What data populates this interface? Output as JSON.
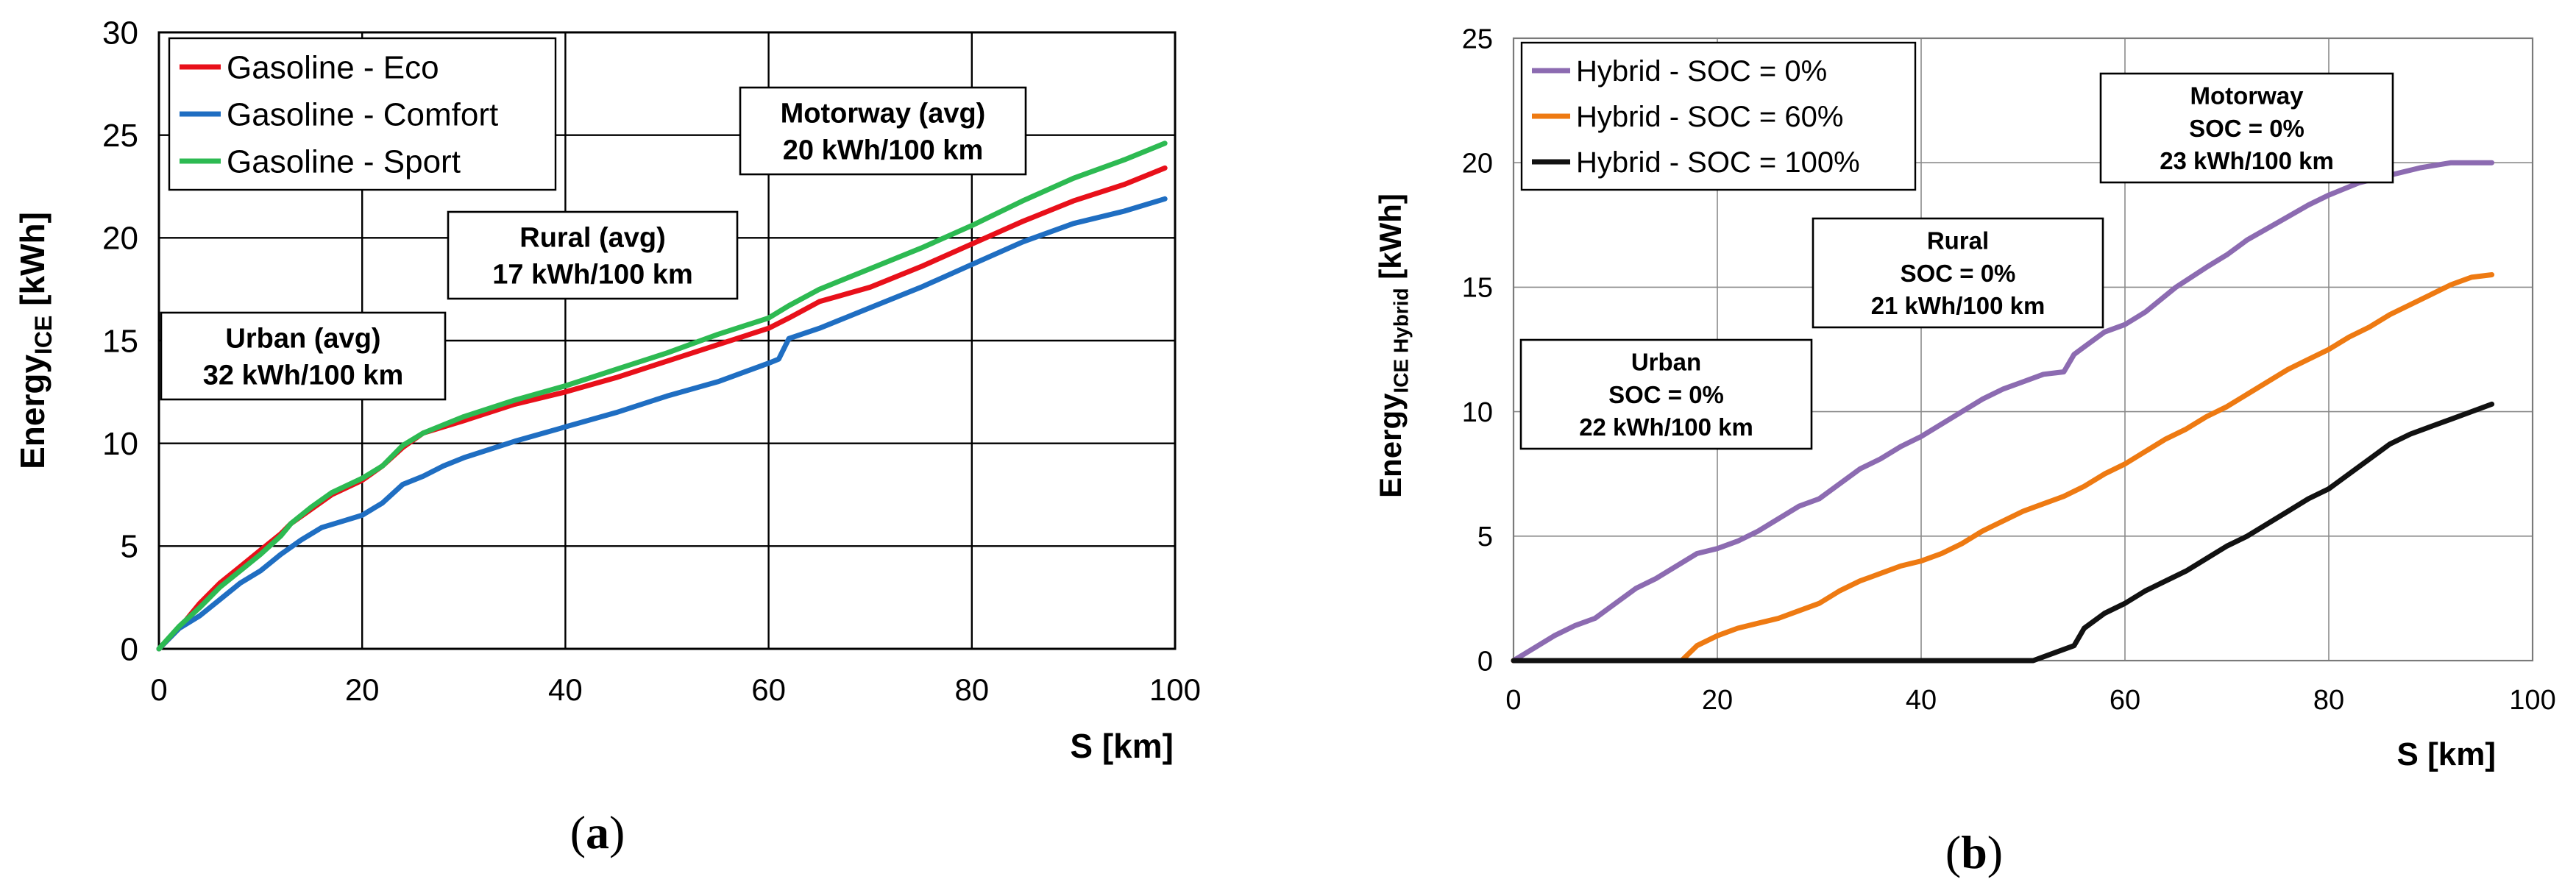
{
  "chart_data": [
    {
      "type": "line",
      "panel_label": "a",
      "xlabel": "S [km]",
      "ylabel": {
        "main": "Energy",
        "sub": "ICE",
        "unit": " [kWh]"
      },
      "xlim": [
        0,
        100
      ],
      "ylim": [
        0,
        30
      ],
      "xticks": [
        0,
        20,
        40,
        60,
        80,
        100
      ],
      "yticks": [
        0,
        5,
        10,
        15,
        20,
        25,
        30
      ],
      "grid": true,
      "legend": "top-left",
      "series": [
        {
          "name": "Gasoline - Eco",
          "color": "#e8101a",
          "points": [
            [
              0,
              0
            ],
            [
              2,
              1
            ],
            [
              4,
              2.2
            ],
            [
              6,
              3.2
            ],
            [
              8,
              4
            ],
            [
              10,
              4.8
            ],
            [
              12,
              5.6
            ],
            [
              13,
              6.1
            ],
            [
              15,
              6.8
            ],
            [
              17,
              7.5
            ],
            [
              20,
              8.2
            ],
            [
              22,
              8.9
            ],
            [
              24,
              9.8
            ],
            [
              26,
              10.5
            ],
            [
              30,
              11.1
            ],
            [
              35,
              11.9
            ],
            [
              40,
              12.5
            ],
            [
              45,
              13.2
            ],
            [
              50,
              14
            ],
            [
              55,
              14.8
            ],
            [
              60,
              15.6
            ],
            [
              62,
              16.1
            ],
            [
              65,
              16.9
            ],
            [
              70,
              17.6
            ],
            [
              75,
              18.6
            ],
            [
              80,
              19.7
            ],
            [
              85,
              20.8
            ],
            [
              90,
              21.8
            ],
            [
              95,
              22.6
            ],
            [
              99,
              23.4
            ]
          ]
        },
        {
          "name": "Gasoline - Comfort",
          "color": "#1f6ec2",
          "points": [
            [
              0,
              0
            ],
            [
              2,
              1
            ],
            [
              4,
              1.6
            ],
            [
              6,
              2.4
            ],
            [
              8,
              3.2
            ],
            [
              10,
              3.8
            ],
            [
              12,
              4.6
            ],
            [
              14,
              5.3
            ],
            [
              16,
              5.9
            ],
            [
              18,
              6.2
            ],
            [
              20,
              6.5
            ],
            [
              22,
              7.1
            ],
            [
              24,
              8
            ],
            [
              26,
              8.4
            ],
            [
              28,
              8.9
            ],
            [
              30,
              9.3
            ],
            [
              35,
              10.1
            ],
            [
              40,
              10.8
            ],
            [
              45,
              11.5
            ],
            [
              50,
              12.3
            ],
            [
              55,
              13
            ],
            [
              60,
              13.9
            ],
            [
              61,
              14.1
            ],
            [
              62,
              15.1
            ],
            [
              65,
              15.6
            ],
            [
              70,
              16.6
            ],
            [
              75,
              17.6
            ],
            [
              80,
              18.7
            ],
            [
              85,
              19.8
            ],
            [
              90,
              20.7
            ],
            [
              95,
              21.3
            ],
            [
              99,
              21.9
            ]
          ]
        },
        {
          "name": "Gasoline - Sport",
          "color": "#2dba52",
          "points": [
            [
              0,
              0
            ],
            [
              2,
              1.1
            ],
            [
              4,
              2
            ],
            [
              6,
              3
            ],
            [
              8,
              3.8
            ],
            [
              10,
              4.6
            ],
            [
              12,
              5.5
            ],
            [
              13,
              6.1
            ],
            [
              15,
              6.9
            ],
            [
              17,
              7.6
            ],
            [
              20,
              8.3
            ],
            [
              22,
              8.9
            ],
            [
              24,
              9.9
            ],
            [
              26,
              10.5
            ],
            [
              30,
              11.3
            ],
            [
              35,
              12.1
            ],
            [
              40,
              12.8
            ],
            [
              45,
              13.6
            ],
            [
              50,
              14.4
            ],
            [
              55,
              15.3
            ],
            [
              60,
              16.1
            ],
            [
              62,
              16.7
            ],
            [
              65,
              17.5
            ],
            [
              70,
              18.5
            ],
            [
              75,
              19.5
            ],
            [
              80,
              20.6
            ],
            [
              85,
              21.8
            ],
            [
              90,
              22.9
            ],
            [
              95,
              23.8
            ],
            [
              99,
              24.6
            ]
          ]
        }
      ],
      "annotations": [
        {
          "id": "urban",
          "lines": [
            "Urban (avg)",
            "32 kWh/100 km"
          ]
        },
        {
          "id": "rural",
          "lines": [
            "Rural (avg)",
            "17 kWh/100 km"
          ]
        },
        {
          "id": "motorway",
          "lines": [
            "Motorway (avg)",
            "20 kWh/100 km"
          ]
        }
      ]
    },
    {
      "type": "line",
      "panel_label": "b",
      "xlabel": "S [km]",
      "ylabel": {
        "main": "Energy",
        "sub": "ICE Hybrid",
        "unit": " [kWh]"
      },
      "xlim": [
        0,
        100
      ],
      "ylim": [
        0,
        25
      ],
      "xticks": [
        0,
        20,
        40,
        60,
        80,
        100
      ],
      "yticks": [
        0,
        5,
        10,
        15,
        20,
        25
      ],
      "grid": true,
      "legend": "top-left",
      "series": [
        {
          "name": "Hybrid - SOC = 0%",
          "color": "#8c6bb1",
          "points": [
            [
              0,
              0
            ],
            [
              2,
              0.5
            ],
            [
              4,
              1
            ],
            [
              6,
              1.4
            ],
            [
              8,
              1.7
            ],
            [
              10,
              2.3
            ],
            [
              12,
              2.9
            ],
            [
              14,
              3.3
            ],
            [
              16,
              3.8
            ],
            [
              18,
              4.3
            ],
            [
              20,
              4.5
            ],
            [
              22,
              4.8
            ],
            [
              24,
              5.2
            ],
            [
              26,
              5.7
            ],
            [
              28,
              6.2
            ],
            [
              30,
              6.5
            ],
            [
              32,
              7.1
            ],
            [
              34,
              7.7
            ],
            [
              36,
              8.1
            ],
            [
              38,
              8.6
            ],
            [
              40,
              9
            ],
            [
              42,
              9.5
            ],
            [
              44,
              10
            ],
            [
              46,
              10.5
            ],
            [
              48,
              10.9
            ],
            [
              50,
              11.2
            ],
            [
              52,
              11.5
            ],
            [
              54,
              11.6
            ],
            [
              55,
              12.3
            ],
            [
              56,
              12.6
            ],
            [
              58,
              13.2
            ],
            [
              60,
              13.5
            ],
            [
              62,
              14
            ],
            [
              65,
              15
            ],
            [
              68,
              15.8
            ],
            [
              70,
              16.3
            ],
            [
              72,
              16.9
            ],
            [
              75,
              17.6
            ],
            [
              78,
              18.3
            ],
            [
              80,
              18.7
            ],
            [
              83,
              19.2
            ],
            [
              86,
              19.5
            ],
            [
              89,
              19.8
            ],
            [
              92,
              20
            ],
            [
              96,
              20
            ]
          ]
        },
        {
          "name": "Hybrid - SOC = 60%",
          "color": "#ee7a12",
          "points": [
            [
              0,
              0
            ],
            [
              16.5,
              0
            ],
            [
              18,
              0.6
            ],
            [
              20,
              1
            ],
            [
              22,
              1.3
            ],
            [
              24,
              1.5
            ],
            [
              26,
              1.7
            ],
            [
              28,
              2
            ],
            [
              30,
              2.3
            ],
            [
              32,
              2.8
            ],
            [
              34,
              3.2
            ],
            [
              36,
              3.5
            ],
            [
              38,
              3.8
            ],
            [
              40,
              4
            ],
            [
              42,
              4.3
            ],
            [
              44,
              4.7
            ],
            [
              46,
              5.2
            ],
            [
              48,
              5.6
            ],
            [
              50,
              6
            ],
            [
              52,
              6.3
            ],
            [
              54,
              6.6
            ],
            [
              56,
              7
            ],
            [
              58,
              7.5
            ],
            [
              60,
              7.9
            ],
            [
              62,
              8.4
            ],
            [
              64,
              8.9
            ],
            [
              66,
              9.3
            ],
            [
              68,
              9.8
            ],
            [
              70,
              10.2
            ],
            [
              72,
              10.7
            ],
            [
              74,
              11.2
            ],
            [
              76,
              11.7
            ],
            [
              78,
              12.1
            ],
            [
              80,
              12.5
            ],
            [
              82,
              13
            ],
            [
              84,
              13.4
            ],
            [
              86,
              13.9
            ],
            [
              88,
              14.3
            ],
            [
              90,
              14.7
            ],
            [
              92,
              15.1
            ],
            [
              94,
              15.4
            ],
            [
              96,
              15.5
            ]
          ]
        },
        {
          "name": "Hybrid - SOC = 100%",
          "color": "#111111",
          "points": [
            [
              0,
              0
            ],
            [
              51,
              0
            ],
            [
              53,
              0.3
            ],
            [
              55,
              0.6
            ],
            [
              56,
              1.3
            ],
            [
              58,
              1.9
            ],
            [
              60,
              2.3
            ],
            [
              62,
              2.8
            ],
            [
              64,
              3.2
            ],
            [
              66,
              3.6
            ],
            [
              68,
              4.1
            ],
            [
              70,
              4.6
            ],
            [
              72,
              5
            ],
            [
              74,
              5.5
            ],
            [
              76,
              6
            ],
            [
              78,
              6.5
            ],
            [
              80,
              6.9
            ],
            [
              82,
              7.5
            ],
            [
              84,
              8.1
            ],
            [
              86,
              8.7
            ],
            [
              88,
              9.1
            ],
            [
              90,
              9.4
            ],
            [
              92,
              9.7
            ],
            [
              94,
              10
            ],
            [
              96,
              10.3
            ]
          ]
        }
      ],
      "annotations": [
        {
          "id": "urban",
          "lines": [
            "Urban",
            "SOC = 0%",
            "22 kWh/100 km"
          ]
        },
        {
          "id": "rural",
          "lines": [
            "Rural",
            "SOC = 0%",
            "21 kWh/100 km"
          ]
        },
        {
          "id": "motorway",
          "lines": [
            "Motorway",
            "SOC = 0%",
            "23 kWh/100 km"
          ]
        }
      ]
    }
  ]
}
